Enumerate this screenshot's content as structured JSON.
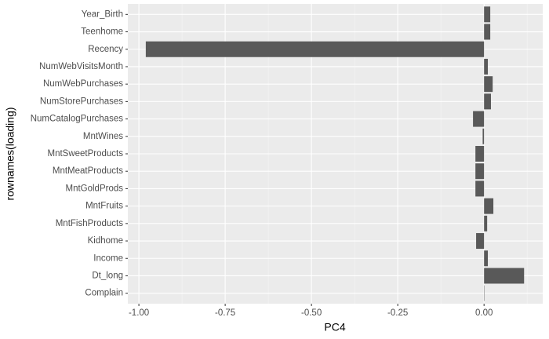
{
  "chart_data": {
    "type": "bar",
    "orientation": "horizontal",
    "x_label": "PC4",
    "y_label": "rownames(loading)",
    "categories": [
      "Year_Birth",
      "Teenhome",
      "Recency",
      "NumWebVisitsMonth",
      "NumWebPurchases",
      "NumStorePurchases",
      "NumCatalogPurchases",
      "MntWines",
      "MntSweetProducts",
      "MntMeatProducts",
      "MntGoldProds",
      "MntFruits",
      "MntFishProducts",
      "Kidhome",
      "Income",
      "Dt_long",
      "Complain"
    ],
    "values": [
      0.018,
      0.018,
      -0.98,
      0.011,
      0.025,
      0.02,
      -0.032,
      -0.004,
      -0.025,
      -0.025,
      -0.025,
      0.027,
      0.009,
      -0.023,
      0.011,
      0.116,
      0.001
    ],
    "color": "#595959",
    "xlim": [
      -1.032,
      0.17
    ],
    "xticks": [
      {
        "value": -1,
        "label": "-1.00"
      },
      {
        "value": -0.75,
        "label": "-0.75"
      },
      {
        "value": -0.5,
        "label": "-0.50"
      },
      {
        "value": -0.25,
        "label": "-0.25"
      },
      {
        "value": 0,
        "label": "0.00"
      }
    ],
    "grid": true
  }
}
